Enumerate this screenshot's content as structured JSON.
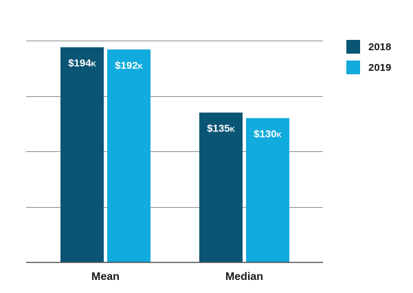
{
  "chart_data": {
    "type": "bar",
    "categories": [
      "Mean",
      "Median"
    ],
    "series": [
      {
        "name": "2018",
        "values": [
          194,
          135
        ],
        "labels": [
          "$194",
          "$135"
        ],
        "label_suffix": "K",
        "color": "#0b5574"
      },
      {
        "name": "2019",
        "values": [
          192,
          130
        ],
        "labels": [
          "$192",
          "$130"
        ],
        "label_suffix": "K",
        "color": "#11abdd"
      }
    ],
    "ylim": [
      0,
      200
    ],
    "y_gridlines": [
      50,
      100,
      150,
      200
    ],
    "grid": true,
    "legend_position": "top-right",
    "unit": "$ thousands"
  }
}
